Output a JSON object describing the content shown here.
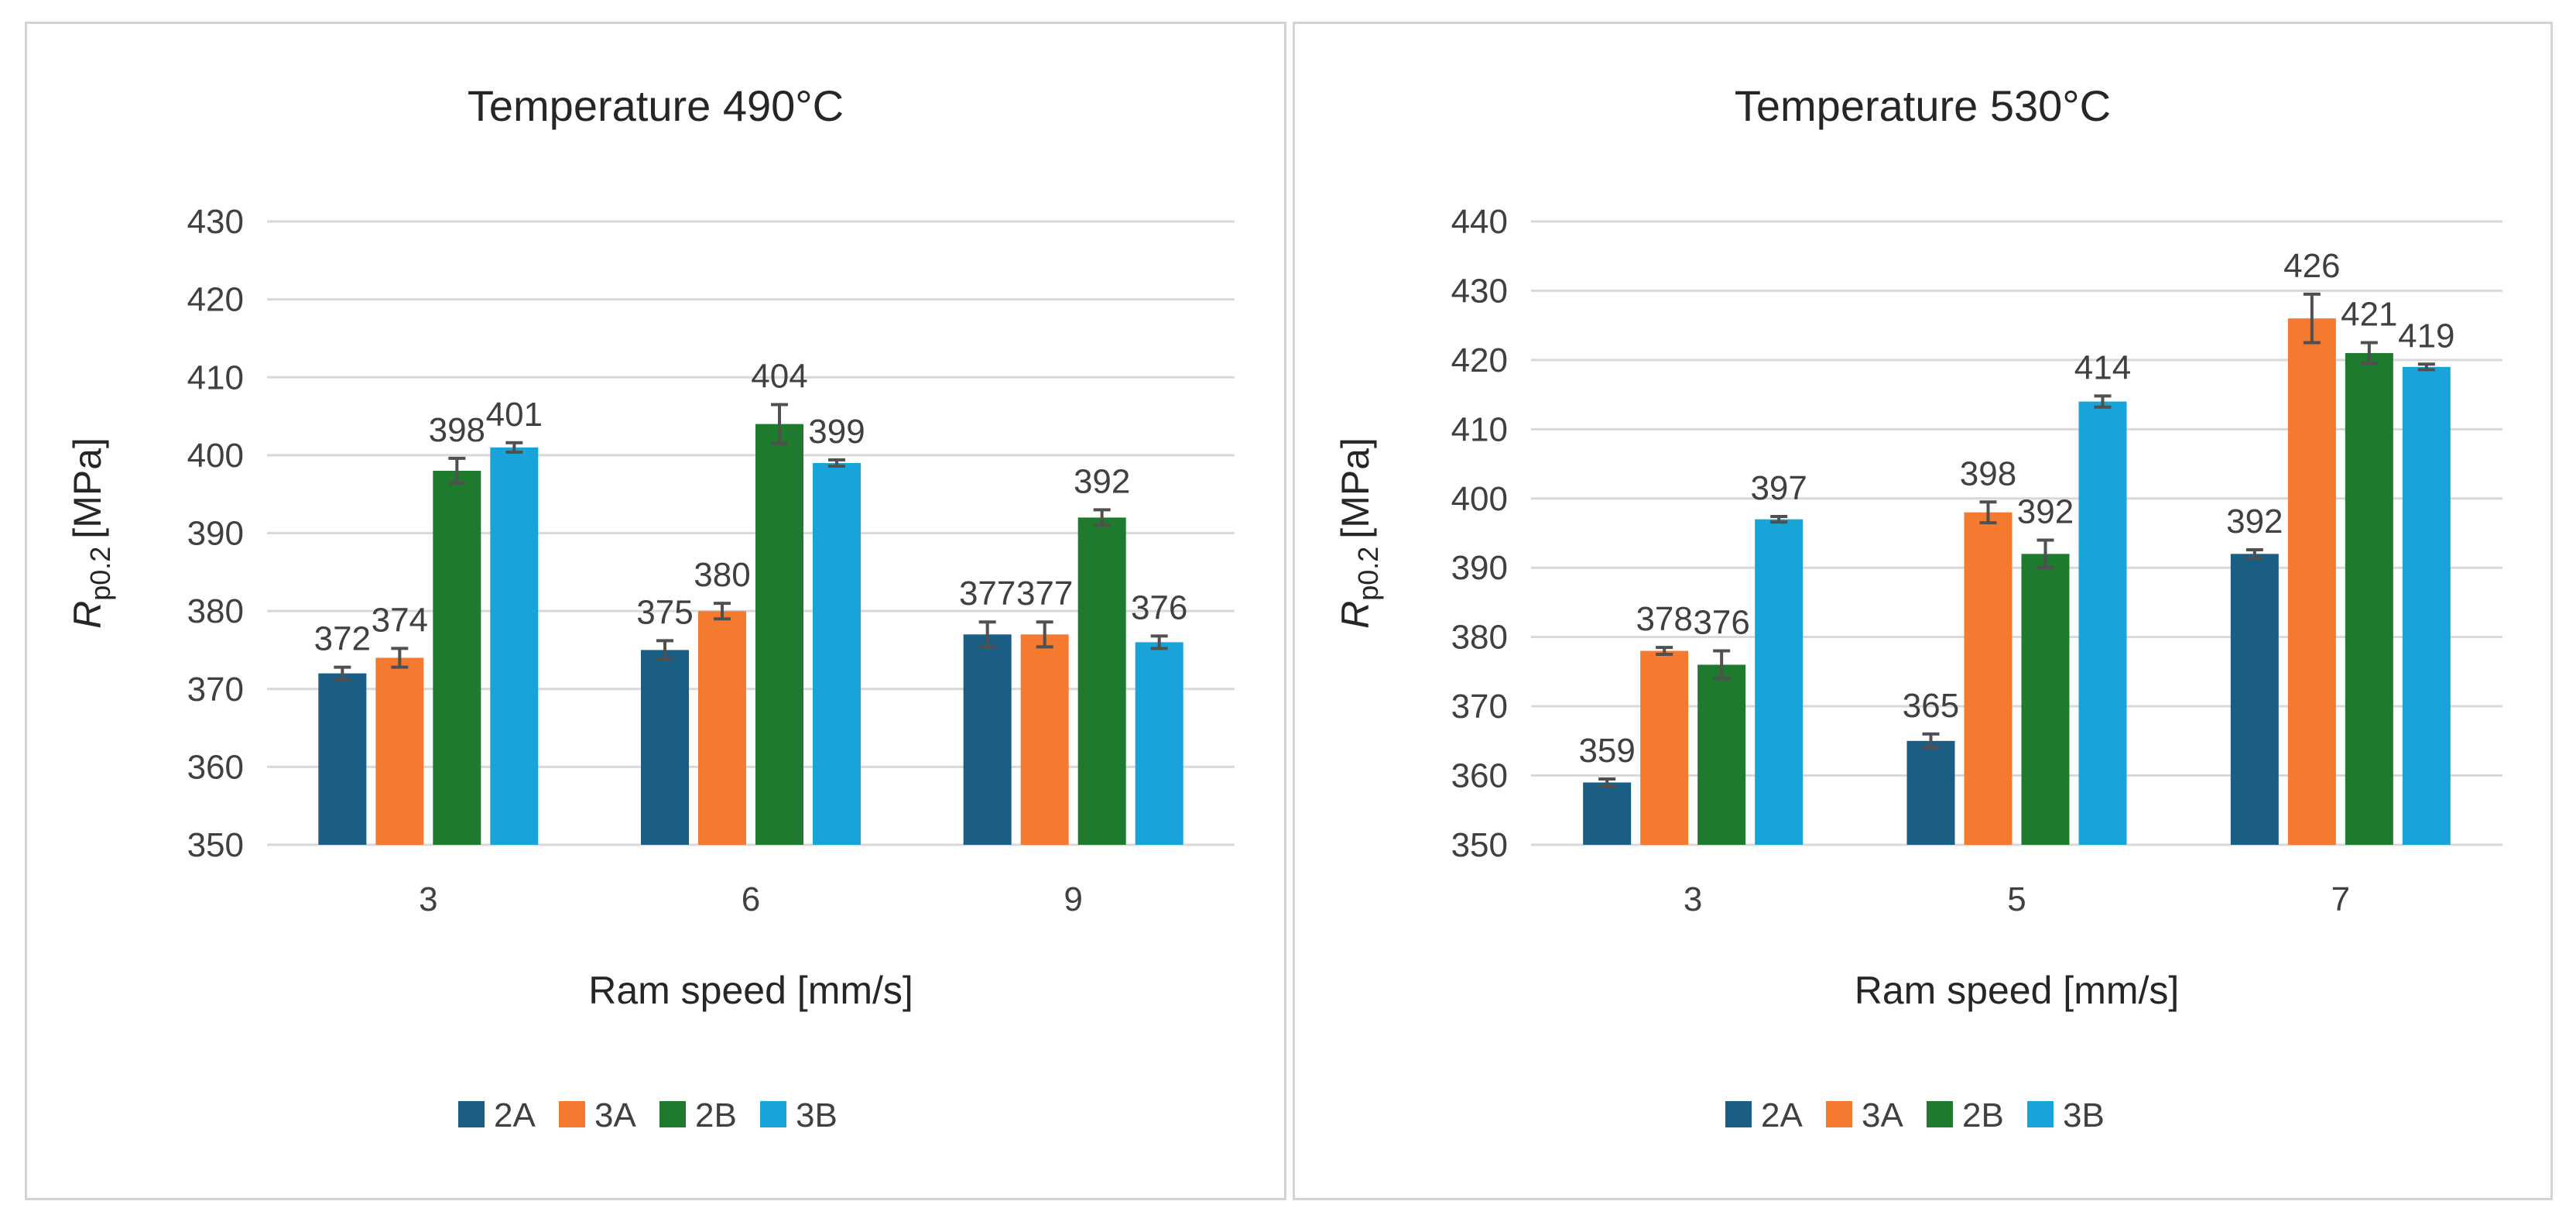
{
  "chart_data": [
    {
      "type": "bar",
      "title": "Temperature 490°C",
      "xlabel": "Ram speed [mm/s]",
      "ylabel_main": "R",
      "ylabel_sub": "p0.2",
      "ylabel_unit": "[MPa]",
      "categories": [
        "3",
        "6",
        "9"
      ],
      "ylim": [
        350,
        430
      ],
      "ytick_step": 10,
      "grid": true,
      "legend_position": "bottom",
      "series": [
        {
          "name": "2A",
          "color": "#1a5e84",
          "values": [
            372,
            375,
            377
          ],
          "errors": [
            0.8,
            1.2,
            1.6
          ]
        },
        {
          "name": "3A",
          "color": "#f47a30",
          "values": [
            374,
            380,
            377
          ],
          "errors": [
            1.2,
            1.0,
            1.6
          ]
        },
        {
          "name": "2B",
          "color": "#1e7a2c",
          "values": [
            398,
            404,
            392
          ],
          "errors": [
            1.6,
            2.5,
            1.0
          ]
        },
        {
          "name": "3B",
          "color": "#18a4d8",
          "values": [
            401,
            399,
            376
          ],
          "errors": [
            0.6,
            0.4,
            0.8
          ]
        }
      ]
    },
    {
      "type": "bar",
      "title": "Temperature 530°C",
      "xlabel": "Ram speed [mm/s]",
      "ylabel_main": "R",
      "ylabel_sub": "p0.2",
      "ylabel_unit": "[MPa]",
      "categories": [
        "3",
        "5",
        "7"
      ],
      "ylim": [
        350,
        440
      ],
      "ytick_step": 10,
      "grid": true,
      "legend_position": "bottom",
      "series": [
        {
          "name": "2A",
          "color": "#1a5e84",
          "values": [
            359,
            365,
            392
          ],
          "errors": [
            0.5,
            1.0,
            0.6
          ]
        },
        {
          "name": "3A",
          "color": "#f47a30",
          "values": [
            378,
            398,
            426
          ],
          "errors": [
            0.5,
            1.5,
            3.5
          ]
        },
        {
          "name": "2B",
          "color": "#1e7a2c",
          "values": [
            376,
            392,
            421
          ],
          "errors": [
            2.0,
            2.0,
            1.5
          ]
        },
        {
          "name": "3B",
          "color": "#18a4d8",
          "values": [
            397,
            414,
            419
          ],
          "errors": [
            0.4,
            0.8,
            0.4
          ]
        }
      ]
    }
  ]
}
